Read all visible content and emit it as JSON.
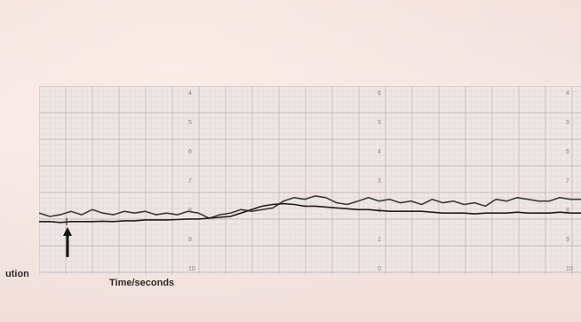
{
  "chart_data": {
    "type": "line",
    "xlabel": "Time/seconds",
    "left_margin_text": "ution",
    "grid": true,
    "paper_scale_digits": [
      {
        "column": 1,
        "labels": [
          "4",
          "5",
          "6",
          "7",
          "8",
          "9",
          "10"
        ]
      },
      {
        "column": 2,
        "labels": [
          "6",
          "5",
          "4",
          "3",
          "2",
          "1",
          "0"
        ]
      },
      {
        "column": 3,
        "labels": [
          "4",
          "5",
          "6",
          "7",
          "8",
          "9",
          "10"
        ]
      }
    ],
    "series": [
      {
        "values": [
          3.1,
          2.9,
          3.0,
          3.2,
          3.0,
          3.3,
          3.1,
          3.0,
          3.2,
          3.1,
          3.2,
          3.0,
          3.1,
          3.0,
          3.2,
          3.1,
          2.8,
          3.0,
          3.1,
          3.3,
          3.2,
          3.3,
          3.4,
          3.8,
          4.0,
          3.9,
          4.1,
          4.0,
          3.7,
          3.6,
          3.8,
          4.0,
          3.8,
          3.9,
          3.7,
          3.8,
          3.6,
          3.9,
          3.7,
          3.8,
          3.6,
          3.7,
          3.5,
          3.9,
          3.8,
          4.0,
          3.9,
          3.8,
          3.8,
          4.0,
          3.9,
          3.9
        ],
        "color": "#3a3a3a"
      },
      {
        "values": [
          2.6,
          2.6,
          2.55,
          2.6,
          2.6,
          2.6,
          2.62,
          2.6,
          2.65,
          2.65,
          2.7,
          2.7,
          2.7,
          2.72,
          2.75,
          2.75,
          2.8,
          2.85,
          2.9,
          3.1,
          3.3,
          3.5,
          3.6,
          3.65,
          3.6,
          3.5,
          3.5,
          3.45,
          3.4,
          3.35,
          3.3,
          3.3,
          3.25,
          3.2,
          3.2,
          3.2,
          3.2,
          3.15,
          3.1,
          3.1,
          3.1,
          3.05,
          3.1,
          3.1,
          3.1,
          3.15,
          3.1,
          3.1,
          3.1,
          3.15,
          3.1,
          3.1
        ],
        "color": "#1e1e1e"
      }
    ],
    "ylim": [
      0,
      10
    ],
    "annotations": [
      {
        "type": "arrow",
        "x_index": 1,
        "direction": "up",
        "color": "#111111"
      }
    ]
  }
}
